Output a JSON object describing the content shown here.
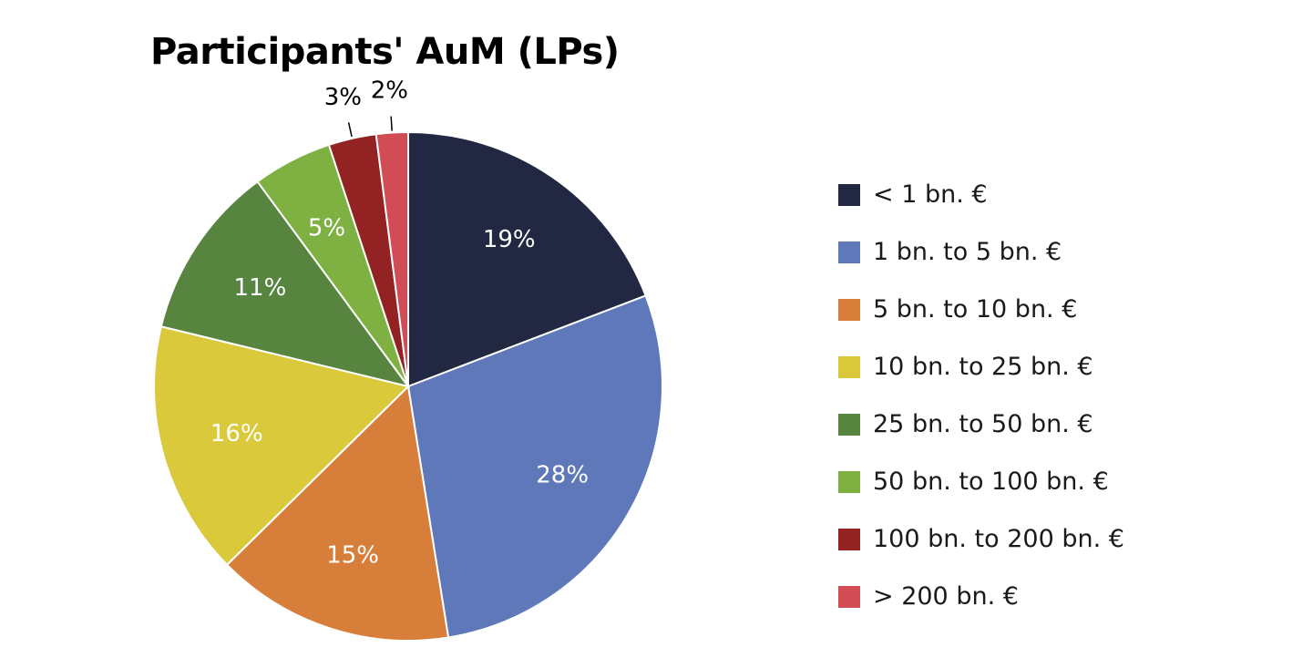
{
  "chart_data": {
    "type": "pie",
    "title": "Participants' AuM (LPs)",
    "start_angle": "12 o'clock",
    "direction": "clockwise",
    "legend_position": "right",
    "categories": [
      "< 1 bn. €",
      "1 bn. to 5 bn. €",
      "5 bn. to 10 bn. €",
      "10 bn. to 25 bn. €",
      "25 bn. to 50 bn. €",
      "50 bn. to 100 bn. €",
      "100 bn. to 200 bn. €",
      "> 200 bn. €"
    ],
    "values": [
      19,
      28,
      15,
      16,
      11,
      5,
      3,
      2
    ],
    "data_labels": [
      "19%",
      "28%",
      "15%",
      "16%",
      "11%",
      "5%",
      "3%",
      "2%"
    ],
    "colors": [
      "#232842",
      "#5e78b9",
      "#d77e3b",
      "#dbc93c",
      "#578540",
      "#7eb142",
      "#932222",
      "#d14c55"
    ],
    "label_colors": [
      "#ffffff",
      "#ffffff",
      "#ffffff",
      "#ffffff",
      "#ffffff",
      "#ffffff",
      "#000000",
      "#000000"
    ],
    "label_outside": [
      false,
      false,
      false,
      false,
      false,
      false,
      true,
      true
    ]
  }
}
